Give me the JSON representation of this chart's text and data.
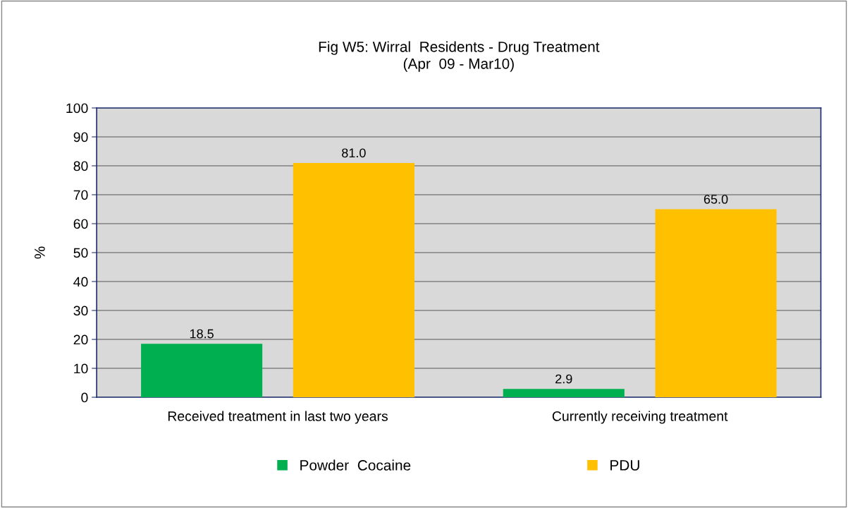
{
  "chart_data": {
    "type": "bar",
    "title": "Fig W5: Wirral  Residents - Drug Treatment\n(Apr  09 - Mar10)",
    "ylabel": "%",
    "categories": [
      "Received treatment in last two years",
      "Currently receiving treatment"
    ],
    "series": [
      {
        "name": "Powder  Cocaine",
        "color": "#00b050",
        "values": [
          18.5,
          2.9
        ],
        "value_labels": [
          "18.5",
          "2.9"
        ]
      },
      {
        "name": "PDU",
        "color": "#ffc000",
        "values": [
          81.0,
          65.0
        ],
        "value_labels": [
          "81.0",
          "65.0"
        ]
      }
    ],
    "ylim": [
      0,
      100
    ],
    "yticks": [
      0,
      10,
      20,
      30,
      40,
      50,
      60,
      70,
      80,
      90,
      100
    ],
    "grid": "y",
    "legend": "bottom"
  }
}
